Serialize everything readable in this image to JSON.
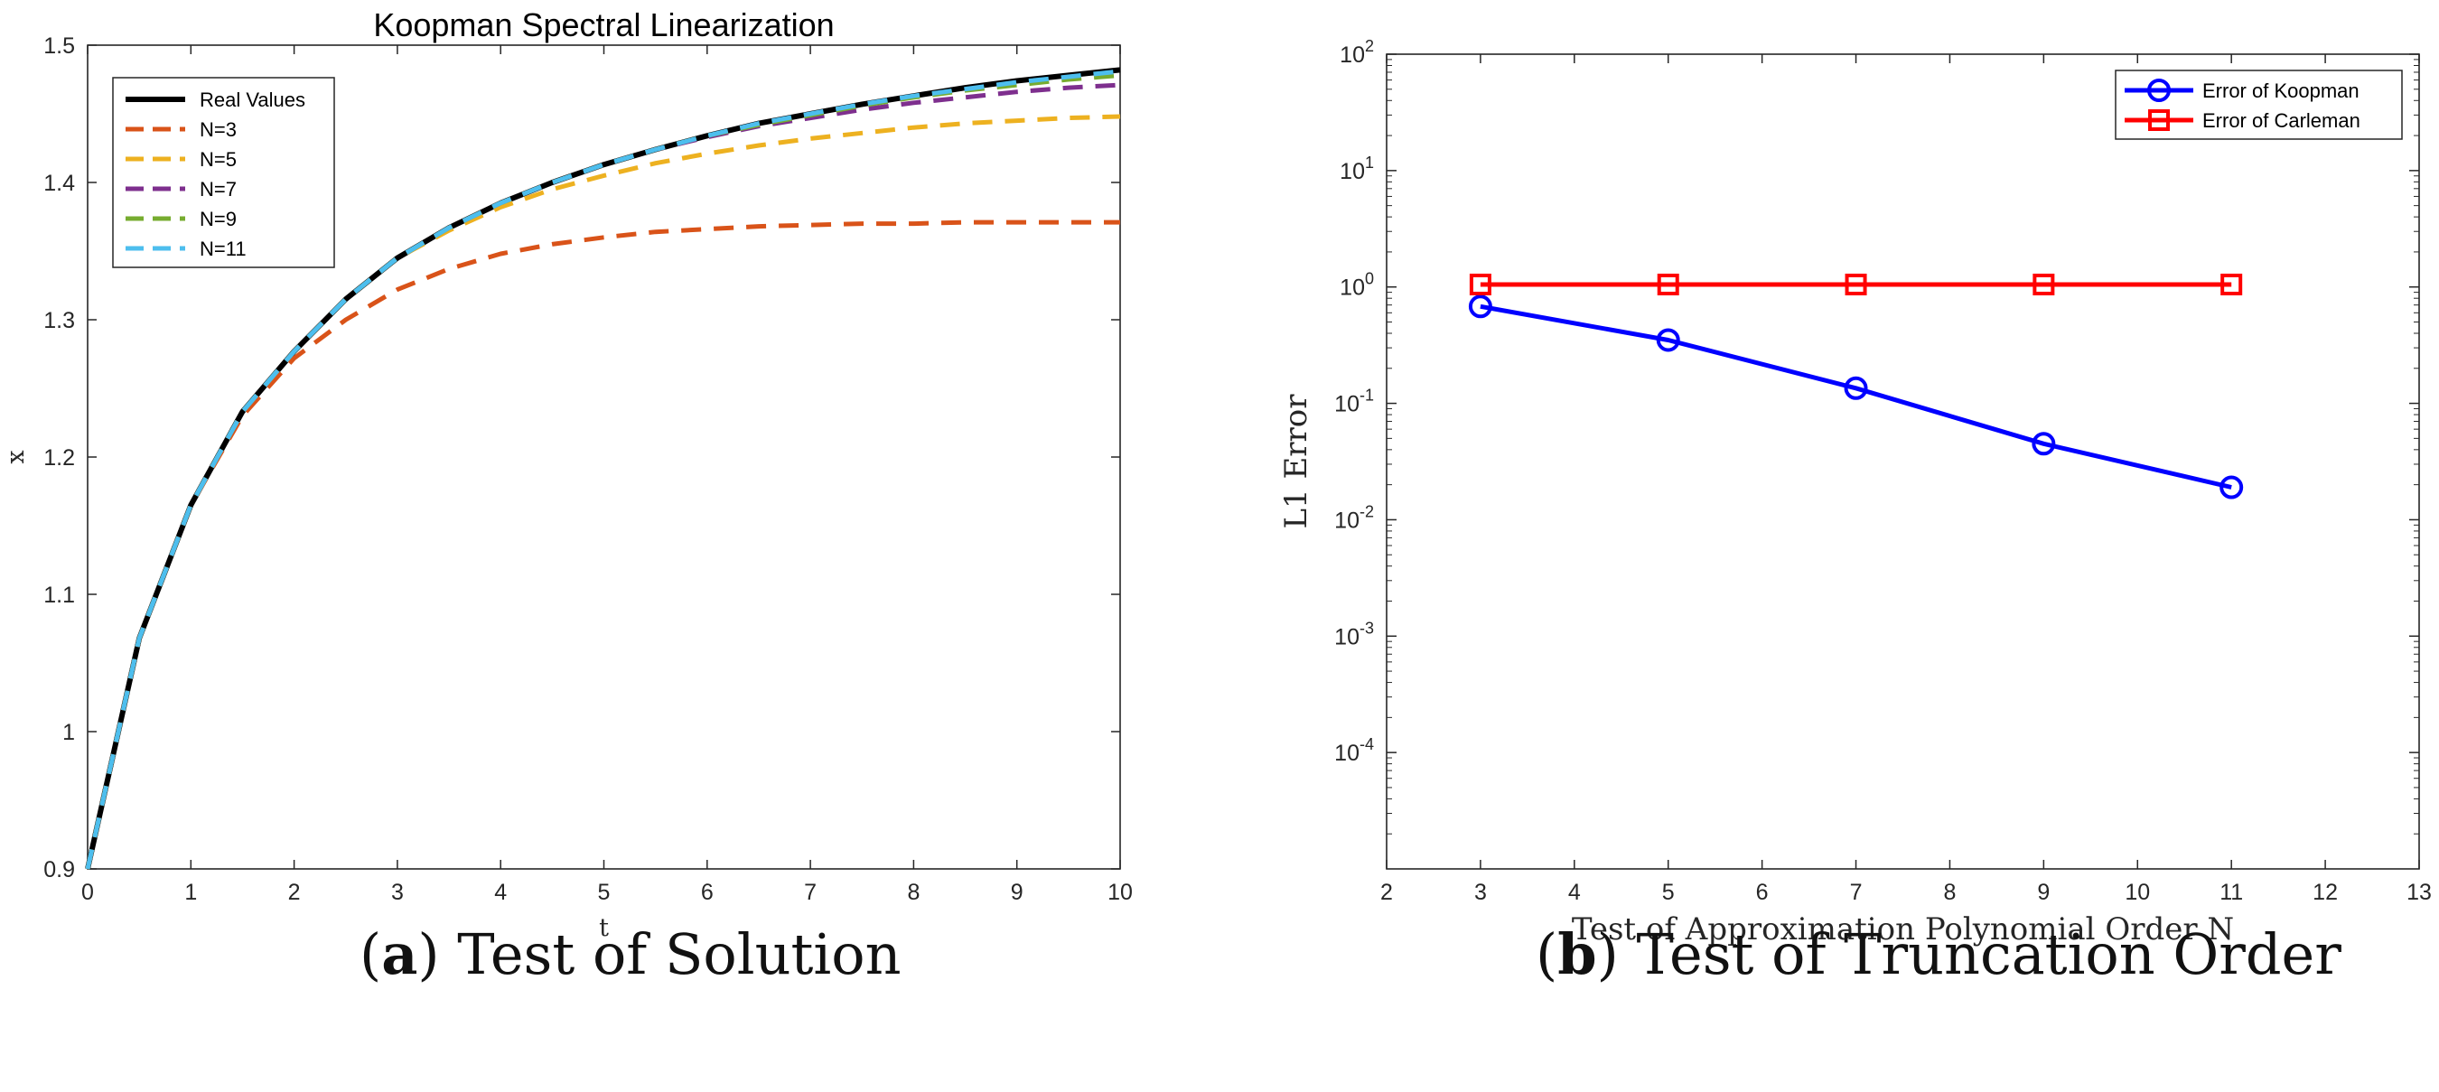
{
  "colors": {
    "real": "#000000",
    "n3": "#D95319",
    "n5": "#EDB120",
    "n7": "#7E2F8E",
    "n9": "#77AC30",
    "n11": "#4DBEEE",
    "koopman": "#0000FF",
    "carleman": "#FF0000"
  },
  "captions": {
    "a_label": "a",
    "a_text": "Test of Solution",
    "b_label": "b",
    "b_text": "Test of Truncation Order"
  },
  "chart_data": [
    {
      "type": "line",
      "title": "Koopman Spectral Linearization",
      "xlabel": "t",
      "ylabel": "x",
      "xlim": [
        0,
        10
      ],
      "ylim": [
        0.9,
        1.5
      ],
      "xticks": [
        "0",
        "1",
        "2",
        "3",
        "4",
        "5",
        "6",
        "7",
        "8",
        "9",
        "10"
      ],
      "yticks": [
        "0.9",
        "1",
        "1.1",
        "1.2",
        "1.3",
        "1.4",
        "1.5"
      ],
      "legend_position": "top-left",
      "x": [
        0,
        0.5,
        1,
        1.5,
        2,
        2.5,
        3,
        3.5,
        4,
        4.5,
        5,
        5.5,
        6,
        6.5,
        7,
        7.5,
        8,
        8.5,
        9,
        9.5,
        10
      ],
      "series": [
        {
          "name": "Real Values",
          "style": "solid",
          "color_key": "real",
          "values": [
            0.9,
            1.068,
            1.165,
            1.233,
            1.277,
            1.315,
            1.345,
            1.367,
            1.385,
            1.4,
            1.413,
            1.424,
            1.434,
            1.443,
            1.45,
            1.457,
            1.463,
            1.469,
            1.474,
            1.478,
            1.482
          ]
        },
        {
          "name": "N=3",
          "style": "dashed",
          "color_key": "n3",
          "values": [
            0.9,
            1.068,
            1.165,
            1.23,
            1.272,
            1.3,
            1.322,
            1.337,
            1.348,
            1.355,
            1.36,
            1.364,
            1.366,
            1.368,
            1.369,
            1.37,
            1.37,
            1.371,
            1.371,
            1.371,
            1.371
          ]
        },
        {
          "name": "N=5",
          "style": "dashed",
          "color_key": "n5",
          "values": [
            0.9,
            1.068,
            1.165,
            1.233,
            1.277,
            1.315,
            1.345,
            1.365,
            1.382,
            1.395,
            1.405,
            1.414,
            1.421,
            1.427,
            1.432,
            1.436,
            1.44,
            1.443,
            1.445,
            1.447,
            1.448
          ]
        },
        {
          "name": "N=7",
          "style": "dashed",
          "color_key": "n7",
          "values": [
            0.9,
            1.068,
            1.165,
            1.233,
            1.277,
            1.315,
            1.345,
            1.367,
            1.385,
            1.4,
            1.413,
            1.424,
            1.433,
            1.441,
            1.447,
            1.453,
            1.458,
            1.462,
            1.466,
            1.469,
            1.471
          ]
        },
        {
          "name": "N=9",
          "style": "dashed",
          "color_key": "n9",
          "values": [
            0.9,
            1.068,
            1.165,
            1.233,
            1.277,
            1.315,
            1.345,
            1.367,
            1.385,
            1.4,
            1.413,
            1.424,
            1.434,
            1.442,
            1.449,
            1.456,
            1.462,
            1.467,
            1.471,
            1.475,
            1.478
          ]
        },
        {
          "name": "N=11",
          "style": "dashed",
          "color_key": "n11",
          "values": [
            0.9,
            1.068,
            1.165,
            1.233,
            1.277,
            1.315,
            1.345,
            1.367,
            1.385,
            1.4,
            1.413,
            1.424,
            1.434,
            1.443,
            1.45,
            1.457,
            1.463,
            1.468,
            1.473,
            1.477,
            1.481
          ]
        }
      ]
    },
    {
      "type": "line",
      "scale": "log-y",
      "title": "",
      "xlabel": "Test of Approximation Polynomial Order N",
      "ylabel": "L1 Error",
      "xlim": [
        2,
        13
      ],
      "ylim_exp": [
        -5,
        2
      ],
      "xticks": [
        "2",
        "3",
        "4",
        "5",
        "6",
        "7",
        "8",
        "9",
        "10",
        "11",
        "12",
        "13"
      ],
      "ytick_exponents": [
        "2",
        "1",
        "0",
        "-1",
        "-2",
        "-3",
        "-4"
      ],
      "ytick_base": "10",
      "legend_position": "top-right",
      "x": [
        3,
        5,
        7,
        9,
        11
      ],
      "series": [
        {
          "name": "Error of Koopman",
          "marker": "circle",
          "color_key": "koopman",
          "values": [
            0.68,
            0.35,
            0.135,
            0.045,
            0.019
          ]
        },
        {
          "name": "Error of Carleman",
          "marker": "square",
          "color_key": "carleman",
          "values": [
            1.05,
            1.05,
            1.05,
            1.05,
            1.05
          ]
        }
      ]
    }
  ]
}
